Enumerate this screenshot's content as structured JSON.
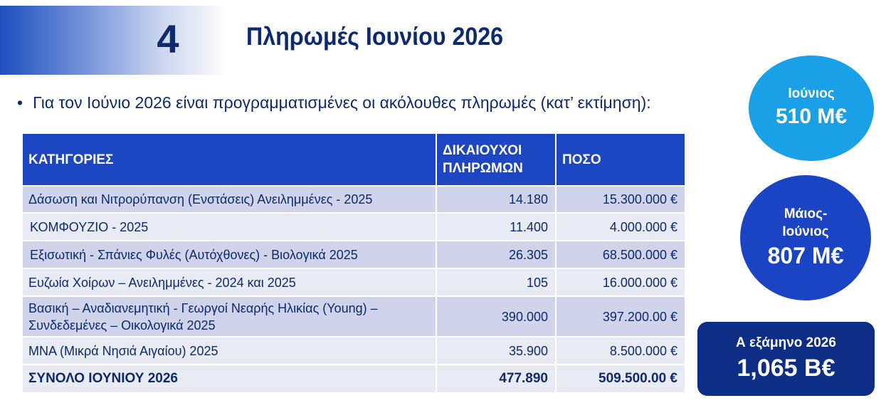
{
  "header": {
    "number": "4",
    "title": "Πληρωμές Ιουνίου 2026"
  },
  "intro": {
    "bullet": "•",
    "text": "Για τον Ιούνιο 2026 είναι προγραμματισμένες οι ακόλουθες πληρωμές (κατ’ εκτίμηση):"
  },
  "table": {
    "headers": {
      "category": "ΚΑΤΗΓΟΡΙΕΣ",
      "beneficiaries_line1": "ΔΙΚΑΙΟΥΧΟΙ",
      "beneficiaries_line2": "ΠΛΗΡΩΜΩΝ",
      "amount": "ΠΟΣΟ"
    },
    "rows": [
      {
        "category": "Δάσωση και Νιτρορύπανση (Ενστάσεις) Ανειλημμένες - 2025",
        "beneficiaries": "14.180",
        "amount": "15.300.000 €"
      },
      {
        "category": "ΚΟΜΦΟΥΖΙΟ - 2025",
        "beneficiaries": "11.400",
        "amount": "4.000.000 €"
      },
      {
        "category": "Εξισωτική - Σπάνιες Φυλές (Αυτόχθονες) - Βιολογικά 2025",
        "beneficiaries": "26.305",
        "amount": "68.500.000 €"
      },
      {
        "category": "Ευζωία Χοίρων – Ανειλημμένες - 2024 και 2025",
        "beneficiaries": "105",
        "amount": "16.000.000 €"
      },
      {
        "category_line1": "Βασική – Αναδιανεμητική - Γεωργοί Νεαρής Ηλικίας (Young) –",
        "category_line2": "Συνδεδεμένες – Οικολογικά 2025",
        "beneficiaries": "390.000",
        "amount": "397.200.00 €"
      },
      {
        "category": "ΜΝΑ (Μικρά Νησιά Αιγαίου) 2025",
        "beneficiaries": "35.900",
        "amount": "8.500.000 €"
      }
    ],
    "total": {
      "label": "ΣΥΝΟΛΟ ΙΟΥΝΙΟΥ 2026",
      "beneficiaries": "477.890",
      "amount": "509.500.00 €"
    }
  },
  "summary": {
    "june": {
      "label": "Ιούνιος",
      "value": "510 Μ€"
    },
    "may_june": {
      "label": "Μάιος-Ιούνιος",
      "value": "807 Μ€"
    },
    "half_year": {
      "label": "Α εξάμηνο 2026",
      "value": "1,065 Β€"
    }
  },
  "colors": {
    "title": "#0e2a6e",
    "table_header": "#1d46c2",
    "row_odd": "#cfd4ea",
    "row_even": "#e9ebf4",
    "circle_june": "#1aa0e6",
    "circle_may_june": "#1b44c4",
    "box_half_year": "#0e2d84"
  }
}
